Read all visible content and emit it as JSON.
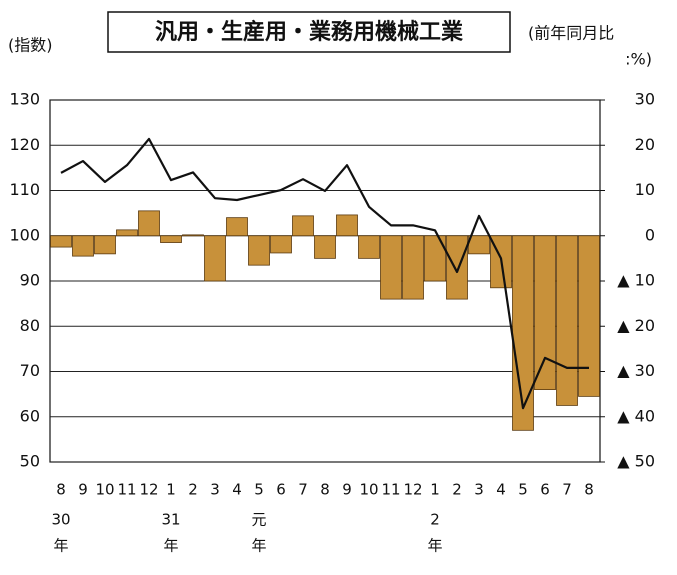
{
  "chart_data": {
    "type": "bar-line",
    "title": "汎用・生産用・業務用機械工業",
    "y_label": "(指数)",
    "y2_label": "(前年同月比",
    "y2_label_unit": ":%)",
    "categories": [
      "8",
      "9",
      "10",
      "11",
      "12",
      "1",
      "2",
      "3",
      "4",
      "5",
      "6",
      "7",
      "8",
      "9",
      "10",
      "11",
      "12",
      "1",
      "2",
      "3",
      "4",
      "5",
      "6",
      "7",
      "8"
    ],
    "eras": [
      "30",
      null,
      null,
      null,
      null,
      "31",
      null,
      null,
      null,
      "元",
      null,
      null,
      null,
      null,
      null,
      null,
      null,
      "2",
      null,
      null,
      null,
      null,
      null,
      null,
      null
    ],
    "era_unit": "年",
    "series": [
      {
        "kind": "bar",
        "axis": "y2",
        "color": "#c8913a",
        "values": [
          -2.5,
          -4.5,
          -4,
          1.3,
          5.5,
          -1.5,
          0.2,
          -10,
          4,
          -6.5,
          -3.8,
          4.4,
          -5,
          4.6,
          -5,
          -14,
          -14,
          -10,
          -14,
          -4,
          -11.5,
          -43,
          -34,
          -37.5,
          -35.5
        ]
      },
      {
        "kind": "line",
        "axis": "y",
        "color": "#111111",
        "values": [
          113.9,
          116.5,
          111.9,
          115.6,
          121.4,
          112.3,
          114,
          108.3,
          107.9,
          109,
          110.1,
          112.5,
          109.9,
          115.6,
          106.4,
          102.3,
          102.3,
          101.2,
          92,
          104.4,
          95,
          61.9,
          73,
          70.8,
          70.8
        ]
      }
    ],
    "ylim": [
      50,
      130
    ],
    "yticks": [
      50,
      60,
      70,
      80,
      90,
      100,
      110,
      120,
      130
    ],
    "y2lim": [
      -50,
      30
    ],
    "y2ticks": [
      {
        "value": -50,
        "label": "▲ 50"
      },
      {
        "value": -40,
        "label": "▲ 40"
      },
      {
        "value": -30,
        "label": "▲ 30"
      },
      {
        "value": -20,
        "label": "▲ 20"
      },
      {
        "value": -10,
        "label": "▲ 10"
      },
      0,
      10,
      20,
      30
    ],
    "grid": true
  }
}
